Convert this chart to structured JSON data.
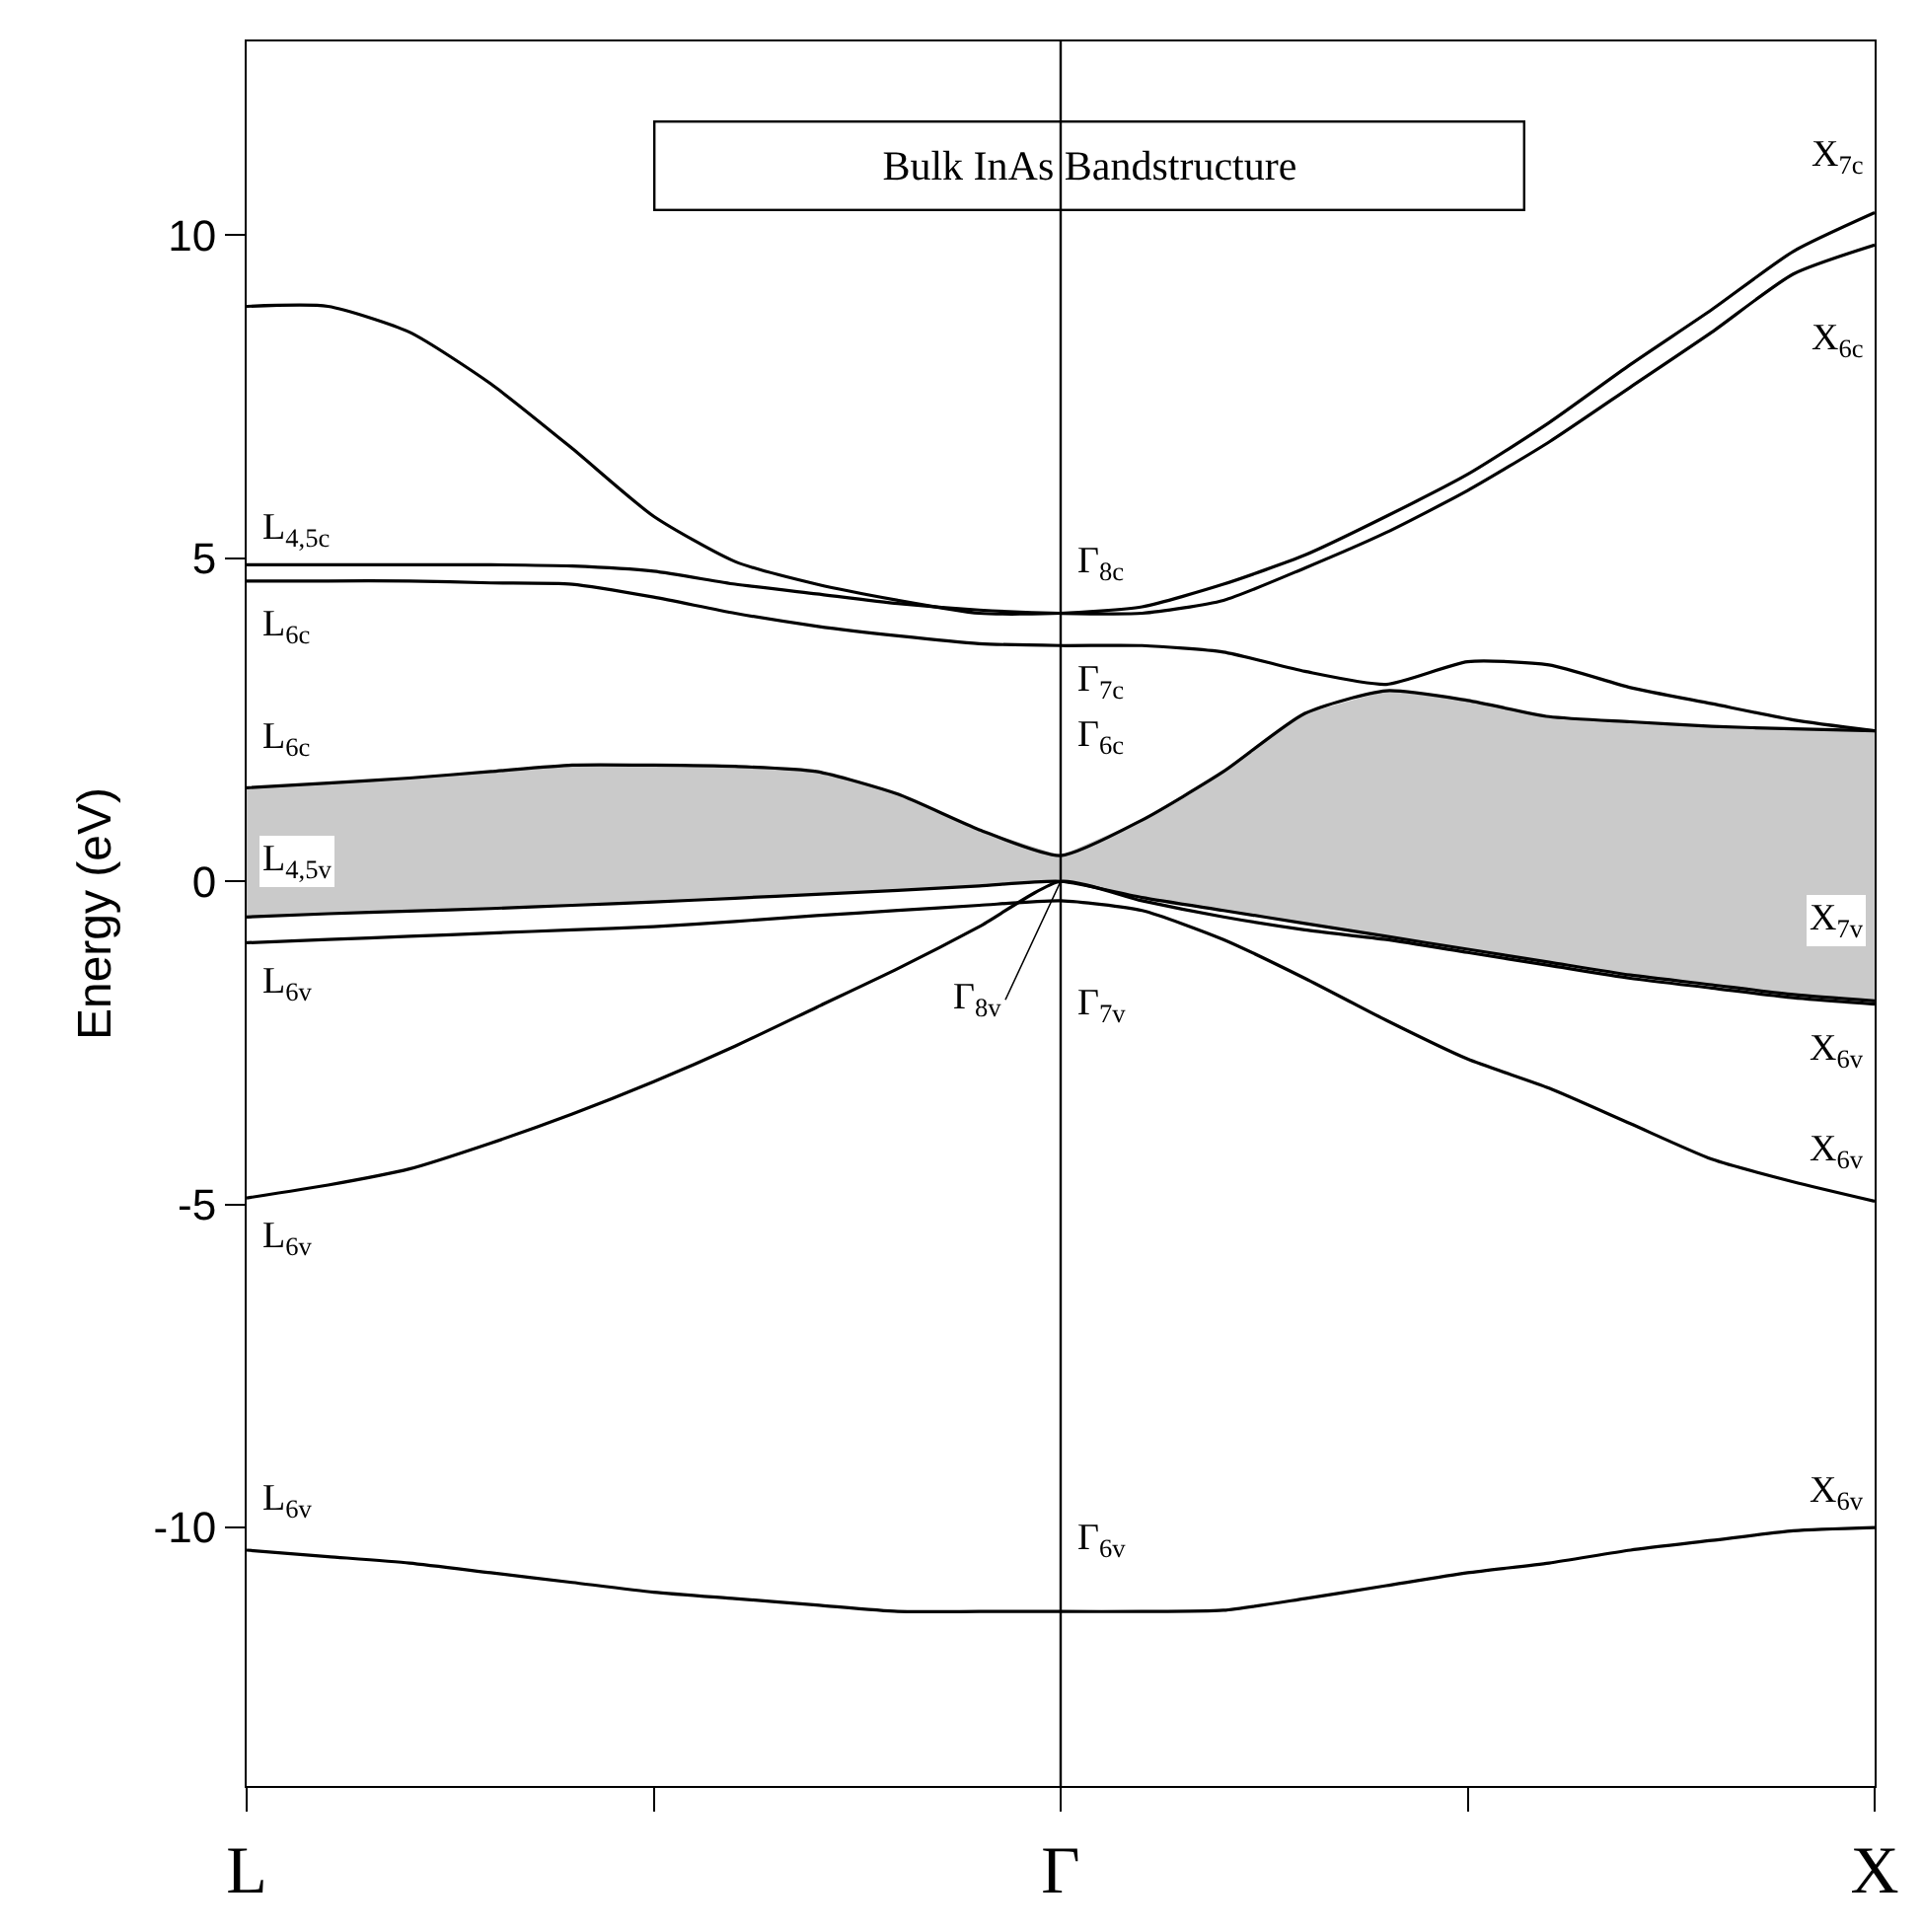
{
  "chart_data": {
    "type": "line",
    "title": "Bulk InAs Bandstructure",
    "ylabel": "Energy (eV)",
    "categories": [
      "L",
      null,
      null,
      null,
      null,
      null,
      null,
      null,
      null,
      null,
      "Γ",
      null,
      null,
      null,
      null,
      null,
      null,
      null,
      null,
      null,
      "X"
    ],
    "ylim": [
      -14,
      13
    ],
    "yticks": [
      -10,
      -5,
      0,
      5,
      10
    ],
    "marker": "none",
    "line_style": "solid",
    "ref_lines": [
      {
        "axis": "x",
        "value": "Γ",
        "color": "#000000"
      }
    ],
    "series": [
      {
        "color": "#000000",
        "values": [
          8.9,
          8.9,
          8.5,
          7.7,
          6.7,
          5.65,
          4.95,
          4.6,
          4.35,
          4.15,
          4.15,
          4.25,
          4.6,
          5.05,
          5.65,
          6.3,
          7.1,
          8.0,
          8.85,
          9.75,
          10.35
        ]
      },
      {
        "color": "#000000",
        "values": [
          4.9,
          4.9,
          4.9,
          4.9,
          4.88,
          4.8,
          4.6,
          4.45,
          4.3,
          4.2,
          4.15,
          4.15,
          4.35,
          4.85,
          5.4,
          6.05,
          6.8,
          7.65,
          8.5,
          9.4,
          9.85
        ]
      },
      {
        "color": "#000000",
        "values": [
          4.65,
          4.65,
          4.65,
          4.62,
          4.6,
          4.4,
          4.15,
          3.95,
          3.8,
          3.68,
          3.65,
          3.65,
          3.55,
          3.25,
          3.05,
          3.4,
          3.35,
          3.0,
          2.75,
          2.5,
          2.33
        ]
      },
      {
        "color": "#000000",
        "values": [
          1.45,
          1.52,
          1.6,
          1.7,
          1.8,
          1.8,
          1.78,
          1.7,
          1.35,
          0.8,
          0.4,
          0.95,
          1.7,
          2.6,
          2.95,
          2.8,
          2.55,
          2.47,
          2.4,
          2.36,
          2.33
        ],
        "lower": [
          -0.55,
          -0.5,
          -0.46,
          -0.42,
          -0.37,
          -0.32,
          -0.26,
          -0.2,
          -0.14,
          -0.07,
          0,
          -0.25,
          -0.45,
          -0.65,
          -0.85,
          -1.05,
          -1.25,
          -1.45,
          -1.6,
          -1.75,
          -1.85
        ],
        "upper": [
          1.45,
          1.52,
          1.6,
          1.7,
          1.8,
          1.8,
          1.78,
          1.7,
          1.35,
          0.8,
          0.4,
          0.95,
          1.7,
          2.6,
          2.95,
          2.8,
          2.55,
          2.47,
          2.4,
          2.36,
          2.33
        ]
      },
      {
        "color": "#000000",
        "values": [
          -0.55,
          -0.5,
          -0.46,
          -0.42,
          -0.37,
          -0.32,
          -0.26,
          -0.2,
          -0.14,
          -0.07,
          0,
          -0.25,
          -0.45,
          -0.65,
          -0.85,
          -1.05,
          -1.25,
          -1.45,
          -1.6,
          -1.75,
          -1.85
        ]
      },
      {
        "color": "#000000",
        "values": [
          -0.95,
          -0.9,
          -0.85,
          -0.8,
          -0.75,
          -0.7,
          -0.62,
          -0.53,
          -0.45,
          -0.37,
          -0.3,
          -0.45,
          -0.9,
          -1.5,
          -2.15,
          -2.75,
          -3.2,
          -3.75,
          -4.3,
          -4.65,
          -4.95
        ]
      },
      {
        "color": "#000000",
        "values": [
          -4.9,
          -4.7,
          -4.45,
          -4.05,
          -3.6,
          -3.1,
          -2.55,
          -1.95,
          -1.35,
          -0.7,
          0,
          -0.3,
          -0.55,
          -0.75,
          -0.9,
          -1.1,
          -1.3,
          -1.5,
          -1.65,
          -1.8,
          -1.9
        ]
      },
      {
        "color": "#000000",
        "values": [
          -10.35,
          -10.45,
          -10.55,
          -10.7,
          -10.85,
          -11.0,
          -11.1,
          -11.2,
          -11.3,
          -11.3,
          -11.3,
          -11.3,
          -11.28,
          -11.1,
          -10.9,
          -10.7,
          -10.55,
          -10.35,
          -10.2,
          -10.05,
          -10.0
        ]
      }
    ],
    "annotations": [
      {
        "text": "L$_{4,5c}$",
        "x": "L",
        "y": 4.9
      },
      {
        "text": "L$_{6c}$",
        "x": "L",
        "y": 4.65
      },
      {
        "text": "L$_{6c}$",
        "x": "L",
        "y": 1.45
      },
      {
        "text": "L$_{4,5v}$",
        "x": "L",
        "y": -0.55
      },
      {
        "text": "L$_{6v}$",
        "x": "L",
        "y": -0.95
      },
      {
        "text": "L$_{6v}$",
        "x": "L",
        "y": -4.9
      },
      {
        "text": "L$_{6v}$",
        "x": "L",
        "y": -10.35
      },
      {
        "text": "Γ$_{8c}$",
        "x": "Γ",
        "y": 4.15
      },
      {
        "text": "Γ$_{7c}$",
        "x": "Γ",
        "y": 3.65
      },
      {
        "text": "Γ$_{6c}$",
        "x": "Γ",
        "y": 0.4
      },
      {
        "text": "Γ$_{8v}$",
        "x": "Γ",
        "y": 0
      },
      {
        "text": "Γ$_{7v}$",
        "x": "Γ",
        "y": -0.3
      },
      {
        "text": "Γ$_{6v}$",
        "x": "Γ",
        "y": -11.3
      },
      {
        "text": "X$_{7c}$",
        "x": "X",
        "y": 10.35
      },
      {
        "text": "X$_{6c}$",
        "x": "X",
        "y": 9.85
      },
      {
        "text": "X$_{7v}$",
        "x": "X",
        "y": -1.85
      },
      {
        "text": "X$_{6v}$",
        "x": "X",
        "y": -1.85
      },
      {
        "text": "X$_{6v}$",
        "x": "X",
        "y": -4.95
      },
      {
        "text": "X$_{6v}$",
        "x": "X",
        "y": -10.0
      }
    ]
  }
}
